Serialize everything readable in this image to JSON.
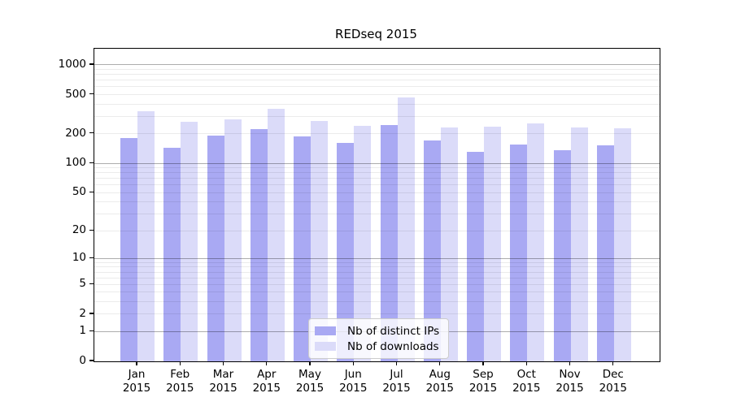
{
  "figure": {
    "title": "REDseq 2015"
  },
  "chart_data": {
    "type": "bar",
    "title": "REDseq 2015",
    "categories": [
      "Jan",
      "Feb",
      "Mar",
      "Apr",
      "May",
      "Jun",
      "Jul",
      "Aug",
      "Sep",
      "Oct",
      "Nov",
      "Dec"
    ],
    "category_year": "2015",
    "series": [
      {
        "name": "Nb of distinct IPs",
        "color": "#a9a9f3",
        "values": [
          182,
          143,
          192,
          223,
          189,
          163,
          246,
          172,
          132,
          155,
          135,
          153
        ]
      },
      {
        "name": "Nb of downloads",
        "color": "#dbdbf9",
        "values": [
          340,
          265,
          281,
          360,
          271,
          242,
          469,
          233,
          237,
          256,
          233,
          229
        ]
      }
    ],
    "xlabel": "",
    "ylabel": "",
    "yscale": "log1p",
    "y_ticks": [
      0,
      1,
      2,
      5,
      10,
      20,
      50,
      100,
      200,
      500,
      1000
    ],
    "ylim": [
      0,
      1460
    ],
    "grid": "both",
    "legend_position": "lower center",
    "colors": {
      "major_grid": "rgba(0,0,0,0.32)",
      "minor_grid": "rgba(0,0,0,0.08)",
      "axis": "#000000",
      "background": "#ffffff"
    }
  }
}
